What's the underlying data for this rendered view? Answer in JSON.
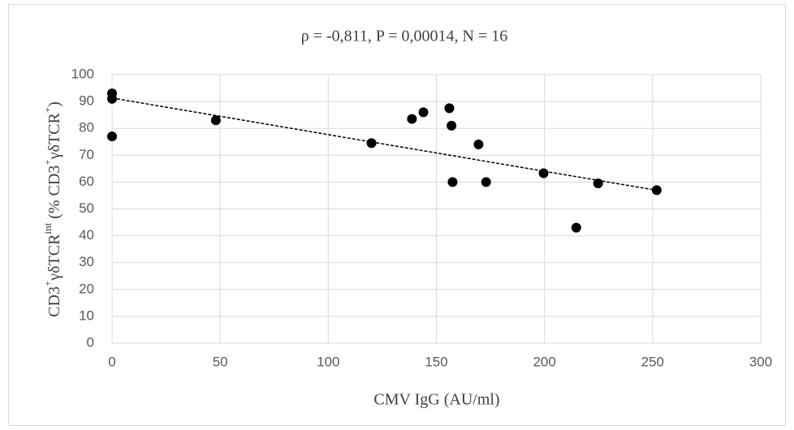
{
  "chart_data": {
    "type": "scatter",
    "title": "ρ = -0,811, P = 0,00014, N = 16",
    "x_label": "CMV IgG (AU/ml)",
    "y_label": [
      {
        "text": "CD3"
      },
      {
        "text": "+",
        "sup": true
      },
      {
        "text": "γδTCR"
      },
      {
        "text": "int",
        "sup": true
      },
      {
        "text": " (% CD3"
      },
      {
        "text": "+",
        "sup": true
      },
      {
        "text": "γδTCR"
      },
      {
        "text": "+",
        "sup": true
      },
      {
        "text": ")"
      }
    ],
    "x": [
      0,
      0,
      0,
      48,
      120,
      138.7,
      144,
      156,
      157,
      157.5,
      169.5,
      173,
      199.6,
      214.7,
      224.8,
      251.9
    ],
    "y": [
      93,
      91,
      77,
      83,
      74.5,
      83.5,
      86,
      87.5,
      81,
      60,
      74,
      60,
      63.3,
      43,
      59.5,
      57
    ],
    "color": "#000000",
    "trendline": {
      "x": [
        0,
        250
      ],
      "y": [
        91.3,
        57.2
      ],
      "color": "#000000"
    },
    "xlim": [
      0,
      300
    ],
    "xticks": [
      0,
      50,
      100,
      150,
      200,
      250,
      300
    ],
    "ylim": [
      0,
      100
    ],
    "yticks": [
      0,
      10,
      20,
      30,
      40,
      50,
      60,
      70,
      80,
      90,
      100
    ],
    "grid": true
  }
}
